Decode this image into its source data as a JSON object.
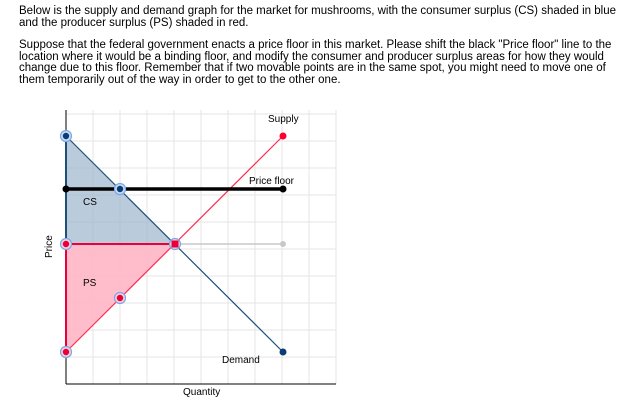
{
  "instructions": {
    "paragraph1": "Below is the supply and demand graph for the market for mushrooms, with the consumer surplus (CS) shaded in blue and the producer surplus (PS) shaded in red.",
    "paragraph2": "Suppose that the federal government enacts a price floor in this market. Please shift the black \"Price floor\" line to the location where it would be a binding floor, and modify the consumer and producer surplus areas for how they would change due to this floor. Remember that if two movable points are in the same spot, you might need to move one of them temporarily out of the way in order to get to the other one."
  },
  "graph": {
    "x_axis_label": "Quantity",
    "y_axis_label": "Price",
    "supply_label": "Supply",
    "demand_label": "Demand",
    "price_floor_label": "Price floor",
    "cs_label": "CS",
    "ps_label": "PS",
    "colors": {
      "cs_fill": "#9db5cc",
      "ps_fill": "#ffb6c7",
      "supply_line": "#ff2b4f",
      "demand_line": "#1d4f7c",
      "price_floor_line": "#000000",
      "gridline": "#e6e6e6",
      "equilibrium_price_line": "#c8c8c8",
      "handle_ring": "#7aa8e8"
    }
  }
}
